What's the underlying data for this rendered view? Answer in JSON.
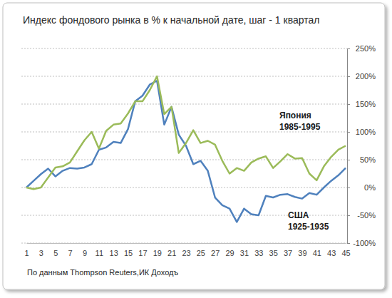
{
  "chart_data": {
    "type": "line",
    "title": "Индекс фондового рынка в % к начальной дате, шаг - 1 квартал",
    "source": "По данным Thompson Reuters,ИК Доходъ",
    "categories": [
      "1",
      null,
      "3",
      null,
      "5",
      null,
      "7",
      null,
      "9",
      null,
      "11",
      null,
      "13",
      null,
      "15",
      null,
      "17",
      null,
      "19",
      null,
      "21",
      null,
      "23",
      null,
      "25",
      null,
      "27",
      null,
      "29",
      null,
      "31",
      null,
      "33",
      null,
      "35",
      null,
      "37",
      null,
      "39",
      null,
      "41",
      null,
      "43",
      null,
      "45"
    ],
    "series": [
      {
        "name": "Япония 1985-1995",
        "color": "#9bbb59",
        "values": [
          0,
          -3,
          0,
          18,
          36,
          38,
          45,
          65,
          85,
          100,
          70,
          102,
          113,
          115,
          133,
          155,
          155,
          175,
          200,
          132,
          145,
          62,
          80,
          103,
          80,
          84,
          77,
          48,
          25,
          35,
          30,
          45,
          52,
          56,
          35,
          47,
          60,
          52,
          53,
          25,
          13,
          38,
          55,
          68,
          75
        ]
      },
      {
        "name": "США 1925-1935",
        "color": "#4f81bd",
        "values": [
          0,
          12,
          24,
          34,
          20,
          30,
          35,
          34,
          36,
          42,
          68,
          72,
          82,
          80,
          105,
          155,
          165,
          185,
          192,
          113,
          145,
          95,
          75,
          42,
          48,
          30,
          -18,
          -32,
          -38,
          -62,
          -38,
          -48,
          -50,
          -15,
          -18,
          -13,
          -12,
          -17,
          -20,
          -10,
          -13,
          0,
          12,
          22,
          35
        ]
      }
    ],
    "ylim": [
      -100,
      250
    ],
    "yticks": [
      {
        "value": -100,
        "label": "-100%"
      },
      {
        "value": -50,
        "label": "-50%"
      },
      {
        "value": 0,
        "label": "0%"
      },
      {
        "value": 50,
        "label": "50%"
      },
      {
        "value": 100,
        "label": "100%"
      },
      {
        "value": 150,
        "label": "150%"
      },
      {
        "value": 200,
        "label": "200%"
      },
      {
        "value": 250,
        "label": "250%"
      }
    ],
    "grid": true
  }
}
